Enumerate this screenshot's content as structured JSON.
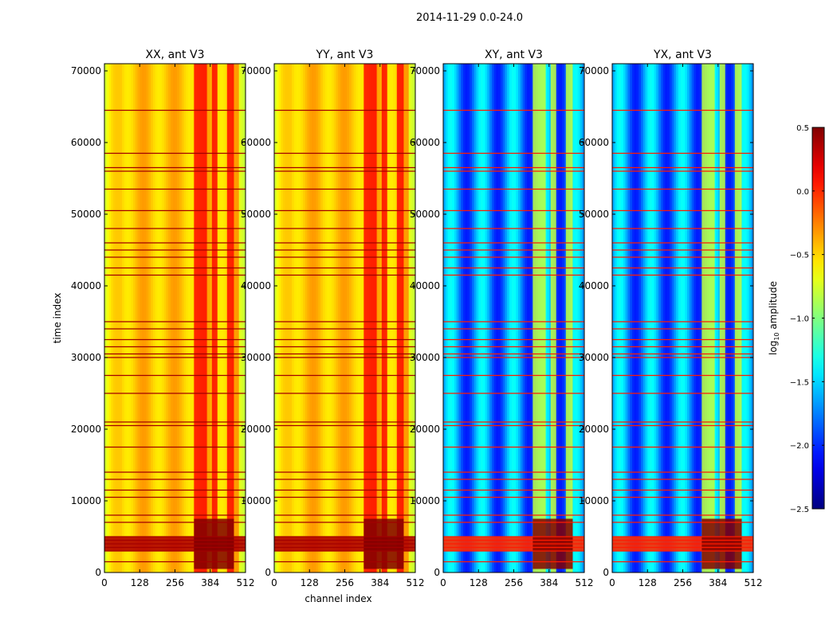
{
  "figure": {
    "suptitle": "2014-11-29 0.0-24.0",
    "colors": {
      "background": "#ffffff",
      "axes": "#000000"
    }
  },
  "chart_data": [
    {
      "type": "heatmap",
      "title": "XX, ant V3",
      "xlabel": "",
      "ylabel": "time index",
      "xlim": [
        0,
        512
      ],
      "ylim": [
        0,
        71000
      ],
      "xticks": [
        0,
        128,
        256,
        384,
        512
      ],
      "yticks": [
        0,
        10000,
        20000,
        30000,
        40000,
        50000,
        60000,
        70000
      ],
      "base_log_amplitude": -0.45,
      "bright_band_channels": [
        [
          325,
          372
        ],
        [
          390,
          410
        ],
        [
          445,
          470
        ]
      ],
      "bright_band_log_amplitude": 0.1,
      "flagged_rows": [
        1500,
        3000,
        3500,
        4000,
        4500,
        5000,
        7000,
        8000,
        10500,
        11500,
        13000,
        14000,
        17500,
        20500,
        21000,
        25000,
        27500,
        30000,
        30500,
        31500,
        32500,
        34000,
        35000,
        41500,
        42500,
        44000,
        45000,
        46000,
        48000,
        50500,
        53500,
        56000,
        56500,
        58500,
        64500
      ],
      "flagged_log_amplitude": 0.35
    },
    {
      "type": "heatmap",
      "title": "YY, ant V3",
      "xlabel": "channel index",
      "ylabel": "",
      "xlim": [
        0,
        512
      ],
      "ylim": [
        0,
        71000
      ],
      "xticks": [
        0,
        128,
        256,
        384,
        512
      ],
      "yticks": [
        0,
        10000,
        20000,
        30000,
        40000,
        50000,
        60000,
        70000
      ],
      "base_log_amplitude": -0.45,
      "bright_band_channels": [
        [
          325,
          372
        ],
        [
          390,
          410
        ],
        [
          445,
          470
        ]
      ],
      "bright_band_log_amplitude": 0.1,
      "flagged_rows": [
        1500,
        3000,
        3500,
        4000,
        4500,
        5000,
        7000,
        8000,
        10500,
        11500,
        13000,
        14000,
        17500,
        20500,
        21000,
        25000,
        27500,
        30000,
        30500,
        31500,
        32500,
        34000,
        35000,
        41500,
        42500,
        44000,
        45000,
        46000,
        48000,
        50500,
        53500,
        56000,
        56500,
        58500,
        64500
      ],
      "flagged_log_amplitude": 0.35
    },
    {
      "type": "heatmap",
      "title": "XY, ant V3",
      "xlabel": "",
      "ylabel": "",
      "xlim": [
        0,
        512
      ],
      "ylim": [
        0,
        71000
      ],
      "xticks": [
        0,
        128,
        256,
        384,
        512
      ],
      "yticks": [
        0,
        10000,
        20000,
        30000,
        40000,
        50000,
        60000,
        70000
      ],
      "base_log_amplitude": -1.7,
      "bright_band_channels": [
        [
          325,
          372
        ],
        [
          390,
          410
        ],
        [
          445,
          470
        ]
      ],
      "bright_band_log_amplitude": -0.8,
      "flagged_rows": [
        1500,
        3000,
        3500,
        4000,
        4500,
        5000,
        7000,
        8000,
        10500,
        11500,
        13000,
        14000,
        17500,
        20500,
        21000,
        25000,
        27500,
        30000,
        30500,
        31500,
        32500,
        34000,
        35000,
        41500,
        42500,
        44000,
        45000,
        46000,
        48000,
        50500,
        53500,
        56000,
        56500,
        58500,
        64500
      ],
      "flagged_log_amplitude": 0.0
    },
    {
      "type": "heatmap",
      "title": "YX, ant V3",
      "xlabel": "",
      "ylabel": "",
      "xlim": [
        0,
        512
      ],
      "ylim": [
        0,
        71000
      ],
      "xticks": [
        0,
        128,
        256,
        384,
        512
      ],
      "yticks": [
        0,
        10000,
        20000,
        30000,
        40000,
        50000,
        60000,
        70000
      ],
      "base_log_amplitude": -1.7,
      "bright_band_channels": [
        [
          325,
          372
        ],
        [
          390,
          410
        ],
        [
          445,
          470
        ]
      ],
      "bright_band_log_amplitude": -0.8,
      "flagged_rows": [
        1500,
        3000,
        3500,
        4000,
        4500,
        5000,
        7000,
        8000,
        10500,
        11500,
        13000,
        14000,
        17500,
        20500,
        21000,
        25000,
        27500,
        30000,
        30500,
        31500,
        32500,
        34000,
        35000,
        41500,
        42500,
        44000,
        45000,
        46000,
        48000,
        50500,
        53500,
        56000,
        56500,
        58500,
        64500
      ],
      "flagged_log_amplitude": 0.0
    }
  ],
  "colorbar": {
    "label_base": "log",
    "label_sub": "10",
    "label_rest": " amplitude",
    "range": [
      -2.5,
      0.5
    ],
    "ticks": [
      0.5,
      0.0,
      -0.5,
      -1.0,
      -1.5,
      -2.0,
      -2.5
    ],
    "tick_labels": [
      "0.5",
      "0.0",
      "−0.5",
      "−1.0",
      "−1.5",
      "−2.0",
      "−2.5"
    ],
    "colormap": "jet"
  }
}
